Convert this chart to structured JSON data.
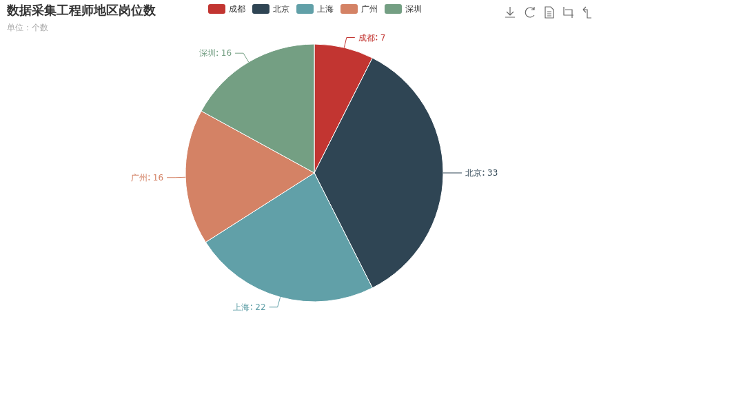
{
  "chart_data": {
    "type": "pie",
    "title": "数据采集工程师地区岗位数",
    "subtitle": "单位：个数",
    "categories": [
      "成都",
      "北京",
      "上海",
      "广州",
      "深圳"
    ],
    "values": [
      7,
      33,
      22,
      16,
      16
    ],
    "colors": [
      "#c23531",
      "#2f4554",
      "#61a0a8",
      "#d48265",
      "#749f83"
    ],
    "legend": "top",
    "data_labels": true
  }
}
